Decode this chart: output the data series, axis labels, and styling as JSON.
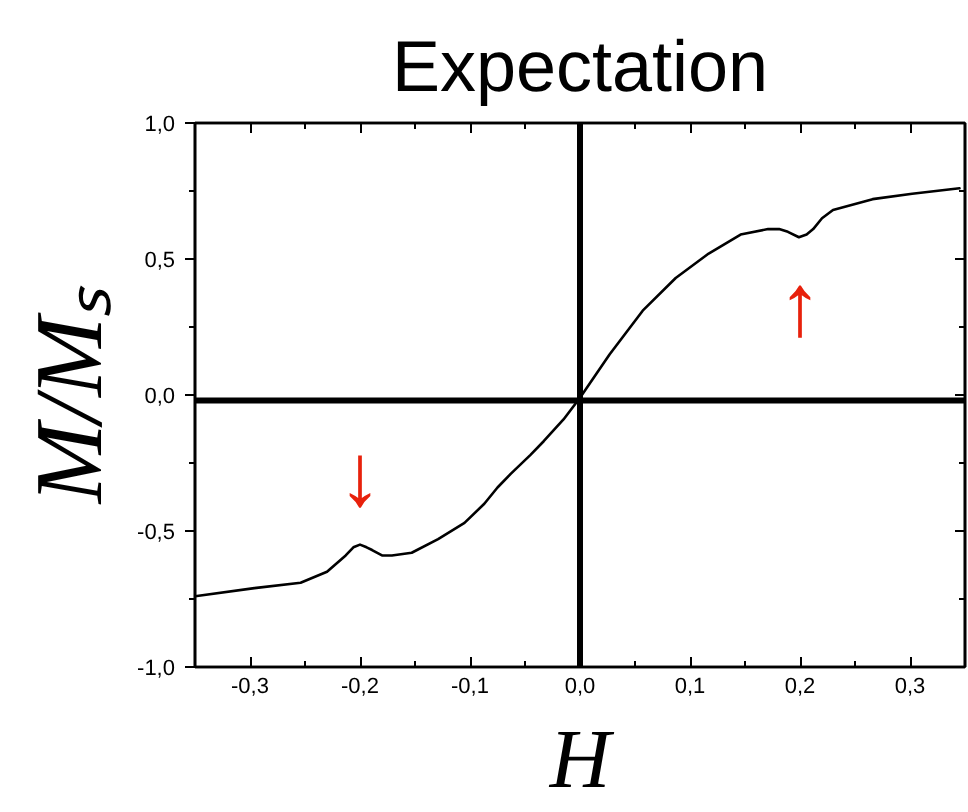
{
  "chart_data": {
    "type": "line",
    "title": "Expectation",
    "xlabel": "H",
    "ylabel": "M/Mₛ",
    "x": [
      -0.35,
      -0.296,
      -0.254,
      -0.23,
      -0.213,
      -0.206,
      -0.2,
      -0.194,
      -0.189,
      -0.18,
      -0.171,
      -0.153,
      -0.129,
      -0.105,
      -0.087,
      -0.075,
      -0.063,
      -0.045,
      -0.033,
      -0.015,
      0,
      0.027,
      0.057,
      0.087,
      0.117,
      0.146,
      0.171,
      0.181,
      0.189,
      0.199,
      0.206,
      0.212,
      0.22,
      0.23,
      0.266,
      0.302,
      0.345
    ],
    "series": [
      {
        "color": "#000000",
        "values": [
          -0.74,
          -0.71,
          -0.69,
          -0.65,
          -0.59,
          -0.56,
          -0.55,
          -0.56,
          -0.57,
          -0.59,
          -0.59,
          -0.58,
          -0.53,
          -0.47,
          -0.4,
          -0.34,
          -0.29,
          -0.22,
          -0.17,
          -0.09,
          -0.01,
          0.15,
          0.31,
          0.43,
          0.52,
          0.59,
          0.61,
          0.61,
          0.6,
          0.58,
          0.59,
          0.61,
          0.65,
          0.68,
          0.72,
          0.74,
          0.76
        ]
      }
    ],
    "xlim": [
      -0.35,
      0.35
    ],
    "ylim": [
      -1.0,
      1.0
    ],
    "xticks": [
      {
        "value": -0.3,
        "label": "-0,3"
      },
      {
        "value": -0.25,
        "label": null
      },
      {
        "value": -0.2,
        "label": "-0,2"
      },
      {
        "value": -0.15,
        "label": null
      },
      {
        "value": -0.1,
        "label": "-0,1"
      },
      {
        "value": -0.05,
        "label": null
      },
      {
        "value": 0,
        "label": "0,0"
      },
      {
        "value": 0.05,
        "label": null
      },
      {
        "value": 0.1,
        "label": "0,1"
      },
      {
        "value": 0.15,
        "label": null
      },
      {
        "value": 0.2,
        "label": "0,2"
      },
      {
        "value": 0.25,
        "label": null
      },
      {
        "value": 0.3,
        "label": "0,3"
      }
    ],
    "yticks": [
      {
        "value": -1.0,
        "label": "-1,0"
      },
      {
        "value": -0.75,
        "label": null
      },
      {
        "value": -0.5,
        "label": "-0,5"
      },
      {
        "value": -0.25,
        "label": null
      },
      {
        "value": 0,
        "label": "0,0"
      },
      {
        "value": 0.25,
        "label": null
      },
      {
        "value": 0.5,
        "label": "0,5"
      },
      {
        "value": 0.75,
        "label": null
      },
      {
        "value": 1.0,
        "label": "1,0"
      }
    ],
    "ref_lines": [
      {
        "axis": "x",
        "value": 0,
        "color": "#000000"
      },
      {
        "axis": "y",
        "value": -0.02,
        "color": "#000000"
      }
    ],
    "annotations": [
      {
        "text": "↓",
        "x": -0.2,
        "y": -0.55
      },
      {
        "text": "↑",
        "x": 0.2,
        "y": 0.58
      }
    ]
  }
}
